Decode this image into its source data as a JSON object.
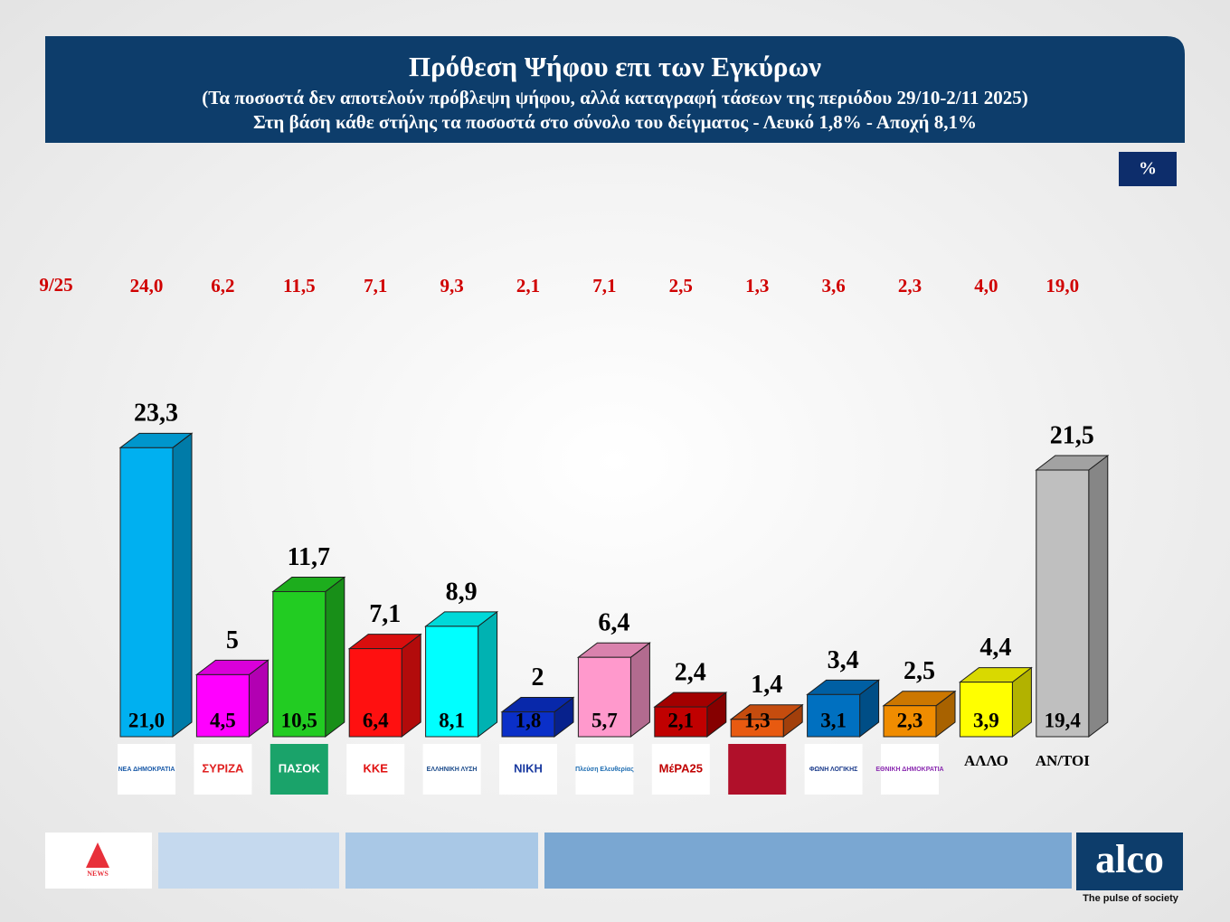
{
  "header": {
    "title": "Πρόθεση Ψήφου επι των Εγκύρων",
    "subtitle": "(Τα ποσοστά δεν αποτελούν πρόβλεψη ψήφου, αλλά καταγραφή τάσεων της περιόδου  29/10-2/11 2025)",
    "note": "Στη βάση κάθε στήλης τα ποσοστά στο σύνολο του δείγματος - Λευκό 1,8% - Αποχή 8,1%"
  },
  "unit_badge": "%",
  "footer": {
    "news_logo": "NEWS",
    "brand": "alco",
    "tagline": "The pulse of society"
  },
  "chart_data": {
    "type": "bar3d",
    "categories": [
      "ΝΕΑ ΔΗΜΟΚΡΑΤΙΑ",
      "ΣΥΡΙΖΑ",
      "ΠΑΣΟΚ",
      "ΚΚΕ",
      "ΕΛΛΗΝΙΚΗ ΛΥΣΗ",
      "ΝΙΚΗ",
      "Πλεύση Ελευθερίας",
      "ΜέΡΑ25",
      null,
      "ΦΩΝΗ ΛΟΓΙΚΗΣ",
      "ΕΘΝΙΚΗ ΔΗΜΟΚΡΑΤΙΑ",
      "ΑΛΛΟ",
      "ΑΝ/ΤΟΙ"
    ],
    "values": [
      23.3,
      5,
      11.7,
      7.1,
      8.9,
      2,
      6.4,
      2.4,
      1.4,
      3.4,
      2.5,
      4.4,
      21.5
    ],
    "value_labels": [
      "23,3",
      "5",
      "11,7",
      "7,1",
      "8,9",
      "2",
      "6,4",
      "2,4",
      "1,4",
      "3,4",
      "2,5",
      "4,4",
      "21,5"
    ],
    "base_values": [
      21.0,
      4.5,
      10.5,
      6.4,
      8.1,
      1.8,
      5.7,
      2.1,
      1.3,
      3.1,
      2.3,
      3.9,
      19.4
    ],
    "base_value_labels": [
      "21,0",
      "4,5",
      "10,5",
      "6,4",
      "8,1",
      "1,8",
      "5,7",
      "2,1",
      "1,3",
      "3,1",
      "2,3",
      "3,9",
      "19,4"
    ],
    "previous_label": "9/25",
    "previous_values": [
      24.0,
      6.2,
      11.5,
      7.1,
      9.3,
      2.1,
      7.1,
      2.5,
      1.3,
      3.6,
      2.3,
      4.0,
      19.0
    ],
    "previous_value_labels": [
      "24,0",
      "6,2",
      "11,5",
      "7,1",
      "9,3",
      "2,1",
      "7,1",
      "2,5",
      "1,3",
      "3,6",
      "2,3",
      "4,0",
      "19,0"
    ],
    "colors": [
      "#00b0f0",
      "#ff00ff",
      "#22cc22",
      "#ff1010",
      "#00ffff",
      "#0a2fc8",
      "#ff99cc",
      "#c00000",
      "#e85a10",
      "#0070c0",
      "#f08c00",
      "#ffff00",
      "#bfbfbf"
    ]
  }
}
